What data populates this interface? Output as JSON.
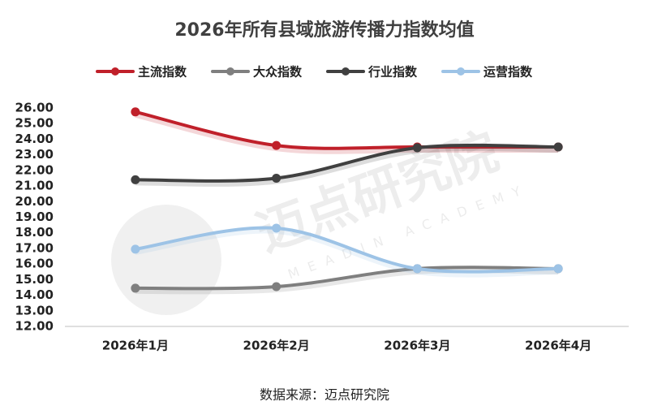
{
  "chart_data": {
    "type": "line",
    "title": "2026年所有县域旅游传播力指数均值",
    "categories": [
      "2026年1月",
      "2026年2月",
      "2026年3月",
      "2026年4月"
    ],
    "series": [
      {
        "name": "主流指数",
        "color": "#c0202a",
        "values": [
          25.75,
          23.6,
          23.5,
          23.5
        ]
      },
      {
        "name": "大众指数",
        "color": "#7f7f7f",
        "values": [
          14.45,
          14.55,
          15.7,
          15.7
        ]
      },
      {
        "name": "行业指数",
        "color": "#404040",
        "values": [
          21.4,
          21.5,
          23.45,
          23.5
        ]
      },
      {
        "name": "运营指数",
        "color": "#9dc3e6",
        "values": [
          16.95,
          18.3,
          15.7,
          15.7
        ]
      }
    ],
    "ylim": [
      12,
      26
    ],
    "yticks": [
      {
        "value": 12,
        "label": "12.00"
      },
      {
        "value": 13,
        "label": "13.00"
      },
      {
        "value": 14,
        "label": "14.00"
      },
      {
        "value": 15,
        "label": "15.00"
      },
      {
        "value": 16,
        "label": "16.00"
      },
      {
        "value": 17,
        "label": "17.00"
      },
      {
        "value": 18,
        "label": "18.00"
      },
      {
        "value": 19,
        "label": "19.00"
      },
      {
        "value": 20,
        "label": "20.00"
      },
      {
        "value": 21,
        "label": "21.00"
      },
      {
        "value": 22,
        "label": "22.00"
      },
      {
        "value": 23,
        "label": "23.00"
      },
      {
        "value": 24,
        "label": "24.00"
      },
      {
        "value": 25,
        "label": "25.00"
      },
      {
        "value": 26,
        "label": "26.00"
      }
    ],
    "grid": false,
    "legend": "top",
    "watermark": "迈点研究院",
    "watermark_subtitle": "MEADIN ACADEMY",
    "source": "数据来源：迈点研究院"
  }
}
